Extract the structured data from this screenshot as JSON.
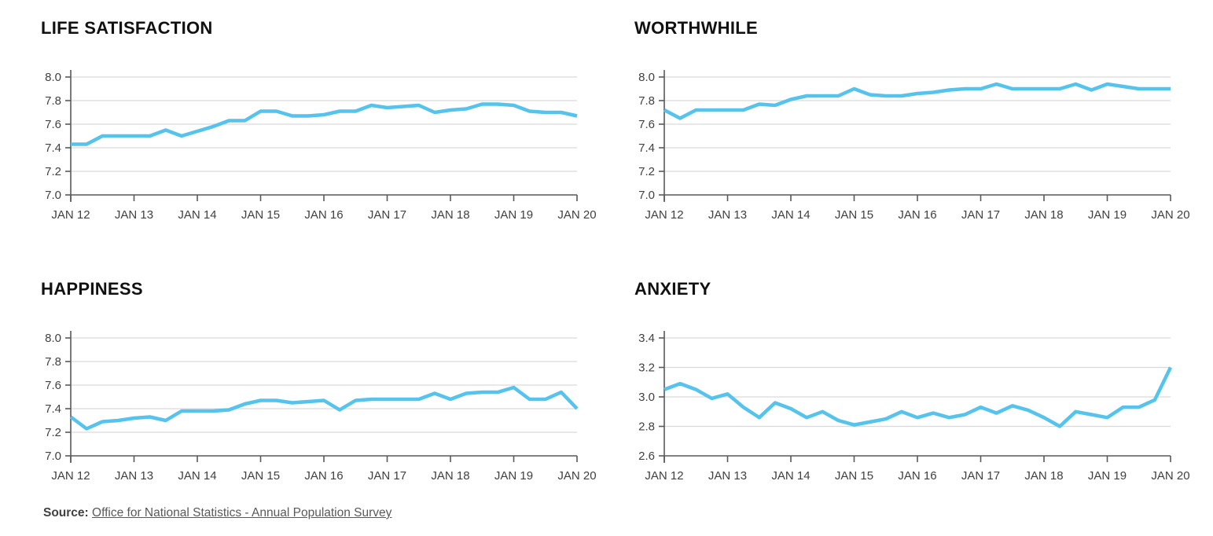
{
  "colors": {
    "line": "#55c3ec",
    "axis": "#58595b",
    "grid": "#d9d9d9",
    "tick_label": "#414042",
    "title": "#111111"
  },
  "source": {
    "label": "Source:",
    "link_text": "Office for National Statistics - Annual Population Survey"
  },
  "chart_data": [
    {
      "type": "line",
      "title": "LIFE SATISFACTION",
      "ylim": [
        7.0,
        8.0
      ],
      "yticks": [
        7.0,
        7.2,
        7.4,
        7.6,
        7.8,
        8.0
      ],
      "grid": true,
      "legend": "none",
      "line_color": "#55c3ec",
      "x_tick_labels": [
        "JAN 12",
        "JAN 13",
        "JAN 14",
        "JAN 15",
        "JAN 16",
        "JAN 17",
        "JAN 18",
        "JAN 19",
        "JAN 20"
      ],
      "categories": [
        "Jan 12",
        "Apr 12",
        "Jul 12",
        "Oct 12",
        "Jan 13",
        "Apr 13",
        "Jul 13",
        "Oct 13",
        "Jan 14",
        "Apr 14",
        "Jul 14",
        "Oct 14",
        "Jan 15",
        "Apr 15",
        "Jul 15",
        "Oct 15",
        "Jan 16",
        "Apr 16",
        "Jul 16",
        "Oct 16",
        "Jan 17",
        "Apr 17",
        "Jul 17",
        "Oct 17",
        "Jan 18",
        "Apr 18",
        "Jul 18",
        "Oct 18",
        "Jan 19",
        "Apr 19",
        "Jul 19",
        "Oct 19",
        "Jan 20"
      ],
      "values": [
        7.43,
        7.43,
        7.5,
        7.5,
        7.5,
        7.5,
        7.55,
        7.5,
        7.54,
        7.58,
        7.63,
        7.63,
        7.71,
        7.71,
        7.67,
        7.67,
        7.68,
        7.71,
        7.71,
        7.76,
        7.74,
        7.75,
        7.76,
        7.7,
        7.72,
        7.73,
        7.77,
        7.77,
        7.76,
        7.71,
        7.7,
        7.7,
        7.67
      ]
    },
    {
      "type": "line",
      "title": "WORTHWHILE",
      "ylim": [
        7.0,
        8.0
      ],
      "yticks": [
        7.0,
        7.2,
        7.4,
        7.6,
        7.8,
        8.0
      ],
      "grid": true,
      "legend": "none",
      "line_color": "#55c3ec",
      "x_tick_labels": [
        "JAN 12",
        "JAN 13",
        "JAN 14",
        "JAN 15",
        "JAN 16",
        "JAN 17",
        "JAN 18",
        "JAN 19",
        "JAN 20"
      ],
      "categories": [
        "Jan 12",
        "Apr 12",
        "Jul 12",
        "Oct 12",
        "Jan 13",
        "Apr 13",
        "Jul 13",
        "Oct 13",
        "Jan 14",
        "Apr 14",
        "Jul 14",
        "Oct 14",
        "Jan 15",
        "Apr 15",
        "Jul 15",
        "Oct 15",
        "Jan 16",
        "Apr 16",
        "Jul 16",
        "Oct 16",
        "Jan 17",
        "Apr 17",
        "Jul 17",
        "Oct 17",
        "Jan 18",
        "Apr 18",
        "Jul 18",
        "Oct 18",
        "Jan 19",
        "Apr 19",
        "Jul 19",
        "Oct 19",
        "Jan 20"
      ],
      "values": [
        7.72,
        7.65,
        7.72,
        7.72,
        7.72,
        7.72,
        7.77,
        7.76,
        7.81,
        7.84,
        7.84,
        7.84,
        7.9,
        7.85,
        7.84,
        7.84,
        7.86,
        7.87,
        7.89,
        7.9,
        7.9,
        7.94,
        7.9,
        7.9,
        7.9,
        7.9,
        7.94,
        7.89,
        7.94,
        7.92,
        7.9,
        7.9,
        7.9
      ]
    },
    {
      "type": "line",
      "title": "HAPPINESS",
      "ylim": [
        7.0,
        8.0
      ],
      "yticks": [
        7.0,
        7.2,
        7.4,
        7.6,
        7.8,
        8.0
      ],
      "grid": true,
      "legend": "none",
      "line_color": "#55c3ec",
      "x_tick_labels": [
        "JAN 12",
        "JAN 13",
        "JAN 14",
        "JAN 15",
        "JAN 16",
        "JAN 17",
        "JAN 18",
        "JAN 19",
        "JAN 20"
      ],
      "categories": [
        "Jan 12",
        "Apr 12",
        "Jul 12",
        "Oct 12",
        "Jan 13",
        "Apr 13",
        "Jul 13",
        "Oct 13",
        "Jan 14",
        "Apr 14",
        "Jul 14",
        "Oct 14",
        "Jan 15",
        "Apr 15",
        "Jul 15",
        "Oct 15",
        "Jan 16",
        "Apr 16",
        "Jul 16",
        "Oct 16",
        "Jan 17",
        "Apr 17",
        "Jul 17",
        "Oct 17",
        "Jan 18",
        "Apr 18",
        "Jul 18",
        "Oct 18",
        "Jan 19",
        "Apr 19",
        "Jul 19",
        "Oct 19",
        "Jan 20"
      ],
      "values": [
        7.33,
        7.23,
        7.29,
        7.3,
        7.32,
        7.33,
        7.3,
        7.38,
        7.38,
        7.38,
        7.39,
        7.44,
        7.47,
        7.47,
        7.45,
        7.46,
        7.47,
        7.39,
        7.47,
        7.48,
        7.48,
        7.48,
        7.48,
        7.53,
        7.48,
        7.53,
        7.54,
        7.54,
        7.58,
        7.48,
        7.48,
        7.54,
        7.4
      ]
    },
    {
      "type": "line",
      "title": "ANXIETY",
      "ylim": [
        2.6,
        3.4
      ],
      "yticks": [
        2.6,
        2.8,
        3.0,
        3.2,
        3.4
      ],
      "grid": true,
      "legend": "none",
      "line_color": "#55c3ec",
      "x_tick_labels": [
        "JAN 12",
        "JAN 13",
        "JAN 14",
        "JAN 15",
        "JAN 16",
        "JAN 17",
        "JAN 18",
        "JAN 19",
        "JAN 20"
      ],
      "categories": [
        "Jan 12",
        "Apr 12",
        "Jul 12",
        "Oct 12",
        "Jan 13",
        "Apr 13",
        "Jul 13",
        "Oct 13",
        "Jan 14",
        "Apr 14",
        "Jul 14",
        "Oct 14",
        "Jan 15",
        "Apr 15",
        "Jul 15",
        "Oct 15",
        "Jan 16",
        "Apr 16",
        "Jul 16",
        "Oct 16",
        "Jan 17",
        "Apr 17",
        "Jul 17",
        "Oct 17",
        "Jan 18",
        "Apr 18",
        "Jul 18",
        "Oct 18",
        "Jan 19",
        "Apr 19",
        "Jul 19",
        "Oct 19",
        "Jan 20"
      ],
      "values": [
        3.05,
        3.09,
        3.05,
        2.99,
        3.02,
        2.93,
        2.86,
        2.96,
        2.92,
        2.86,
        2.9,
        2.84,
        2.81,
        2.83,
        2.85,
        2.9,
        2.86,
        2.89,
        2.86,
        2.88,
        2.93,
        2.89,
        2.94,
        2.91,
        2.86,
        2.8,
        2.9,
        2.88,
        2.86,
        2.93,
        2.93,
        2.98,
        3.2
      ]
    }
  ]
}
